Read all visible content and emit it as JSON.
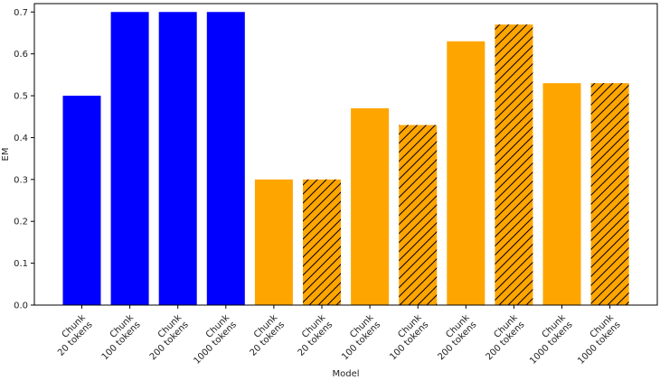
{
  "chart_data": {
    "type": "bar",
    "xlabel": "Model",
    "ylabel": "EM",
    "ylim": [
      0,
      0.72
    ],
    "yticks": [
      0.0,
      0.1,
      0.2,
      0.3,
      0.4,
      0.5,
      0.6,
      0.7
    ],
    "ytick_labels": [
      "0.0",
      "0.1",
      "0.2",
      "0.3",
      "0.4",
      "0.5",
      "0.6",
      "0.7"
    ],
    "grid": false,
    "categories": [
      "Chunk\n20 tokens",
      "Chunk\n100 tokens",
      "Chunk\n200 tokens",
      "Chunk\n1000 tokens",
      "Chunk\n20 tokens",
      "Chunk\n20 tokens",
      "Chunk\n100 tokens",
      "Chunk\n100 tokens",
      "Chunk\n200 tokens",
      "Chunk\n200 tokens",
      "Chunk\n1000 tokens",
      "Chunk\n1000 tokens"
    ],
    "values": [
      0.5,
      0.7,
      0.7,
      0.7,
      0.3,
      0.3,
      0.47,
      0.43,
      0.63,
      0.67,
      0.53,
      0.53
    ],
    "bar_colors": [
      "#0000ff",
      "#0000ff",
      "#0000ff",
      "#0000ff",
      "#ffa500",
      "#ffa500",
      "#ffa500",
      "#ffa500",
      "#ffa500",
      "#ffa500",
      "#ffa500",
      "#ffa500"
    ],
    "hatched": [
      false,
      false,
      false,
      false,
      false,
      true,
      false,
      true,
      false,
      true,
      false,
      true
    ]
  }
}
